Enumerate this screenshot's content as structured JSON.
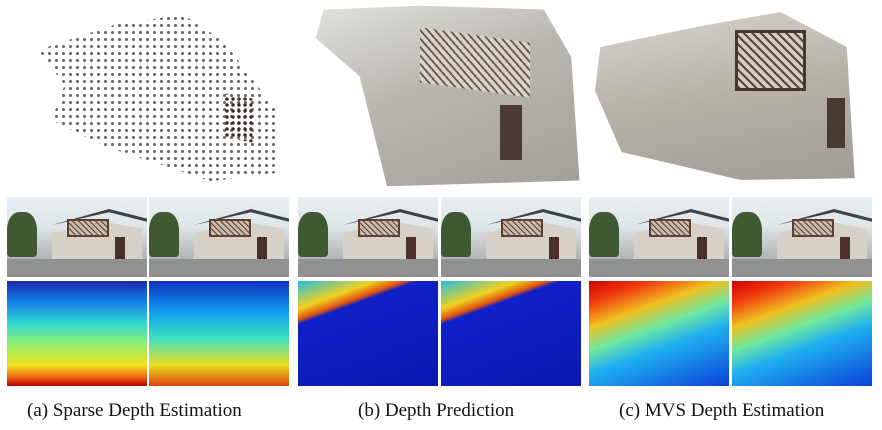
{
  "figure": {
    "captions": {
      "a": "(a) Sparse Depth Estimation",
      "b": "(b) Depth Prediction",
      "c": "(c) MVS Depth Estimation"
    }
  }
}
